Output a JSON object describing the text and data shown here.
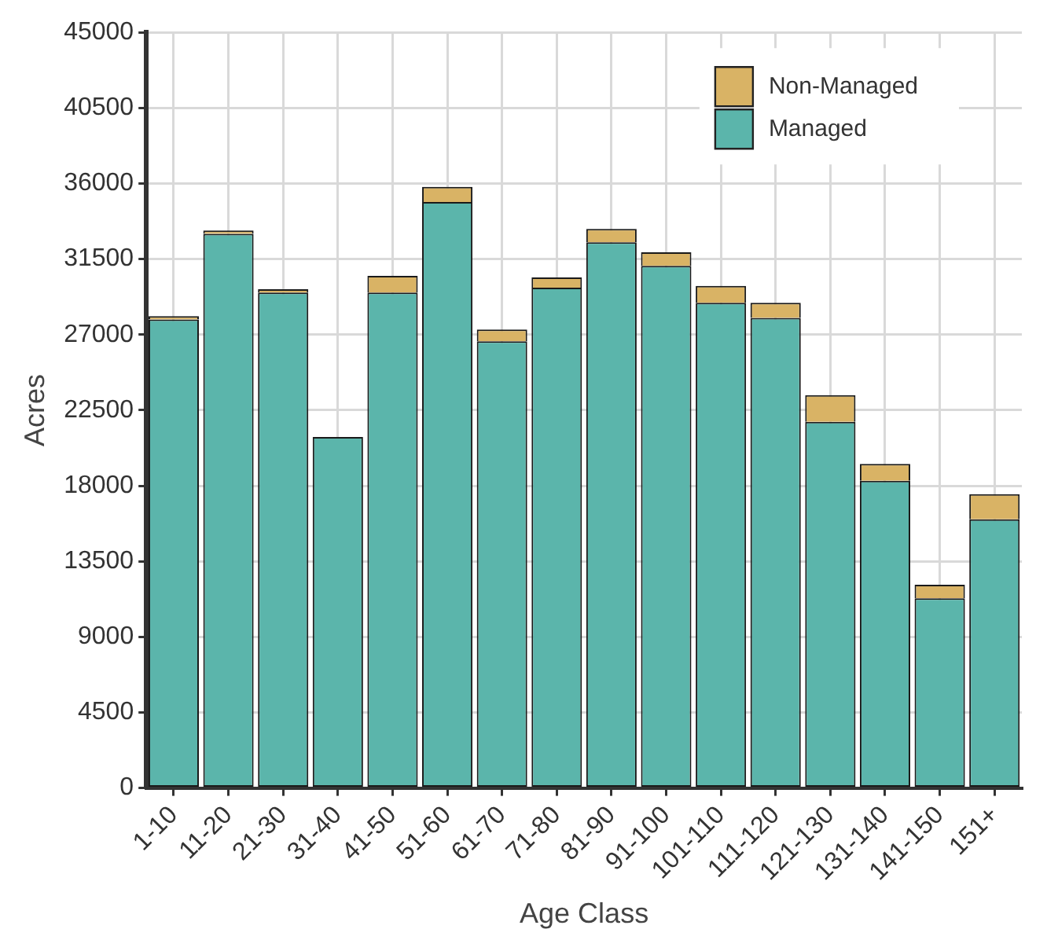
{
  "chart_data": {
    "type": "bar",
    "xlabel": "Age Class",
    "ylabel": "Acres",
    "categories": [
      "1-10",
      "11-20",
      "21-30",
      "31-40",
      "41-50",
      "51-60",
      "61-70",
      "71-80",
      "81-90",
      "91-100",
      "101-110",
      "111-120",
      "121-130",
      "131-140",
      "141-150",
      "151+"
    ],
    "series": [
      {
        "name": "Managed",
        "color": "#5bb5ab",
        "values": [
          27900,
          33000,
          29500,
          20900,
          29500,
          34900,
          26600,
          29800,
          32500,
          31100,
          28900,
          28000,
          21800,
          18300,
          11300,
          16000
        ]
      },
      {
        "name": "Non-Managed",
        "color": "#d9b365",
        "values": [
          200,
          200,
          200,
          0,
          1000,
          900,
          700,
          600,
          800,
          800,
          1000,
          900,
          1600,
          1000,
          800,
          1500
        ]
      }
    ],
    "stacked": true,
    "ylim": [
      0,
      45000
    ],
    "yticks": [
      0,
      4500,
      9000,
      13500,
      18000,
      22500,
      27000,
      31500,
      36000,
      40500,
      45000
    ],
    "grid": true,
    "legend": "top right"
  }
}
